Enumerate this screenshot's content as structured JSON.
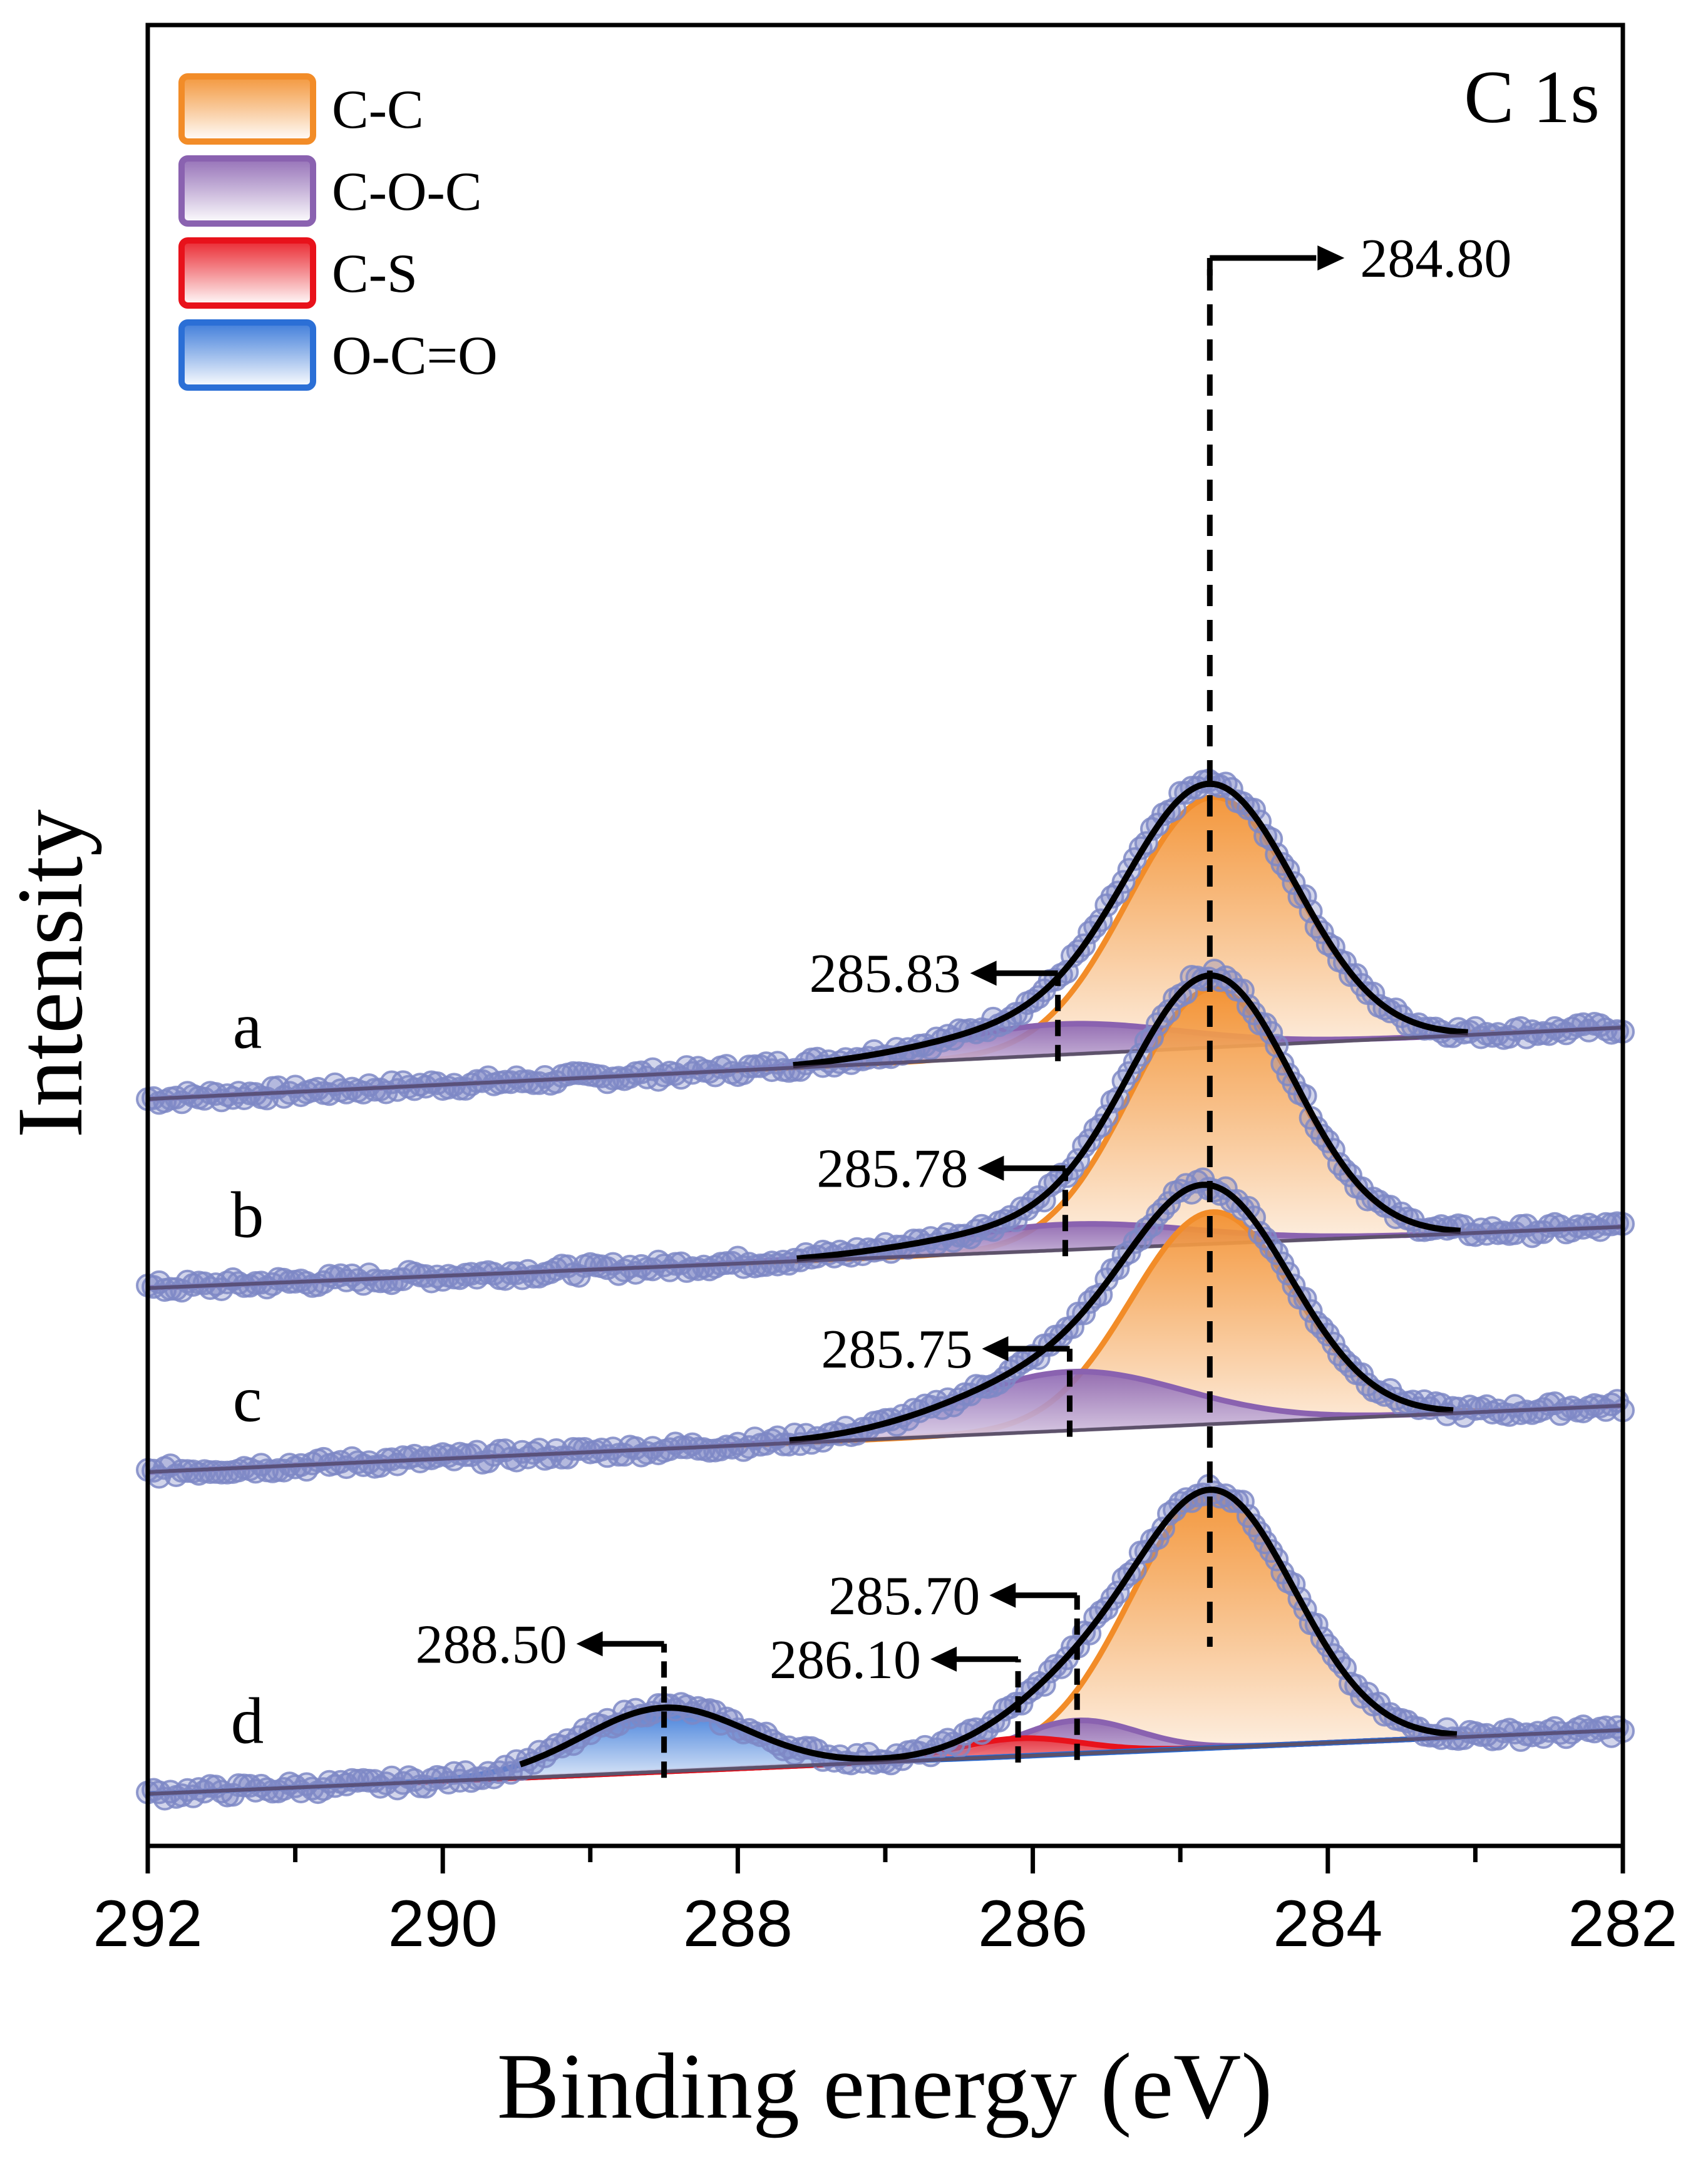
{
  "chart_data": {
    "type": "line",
    "title": "C 1s",
    "xlabel": "Binding energy (eV)",
    "ylabel": "Intensity",
    "xlim": [
      292,
      282
    ],
    "x_reversed": true,
    "x_ticks": [
      292,
      290,
      288,
      286,
      284,
      282
    ],
    "x_tick_labels": [
      "292",
      "290",
      "288",
      "286",
      "284",
      "282"
    ],
    "y_ticks_shown": false,
    "grid": false,
    "legend": {
      "placement": "top-left",
      "entries": [
        {
          "label": "C-C",
          "color": "#f28c28"
        },
        {
          "label": "C-O-C",
          "color": "#8a62b0"
        },
        {
          "label": "C-S",
          "color": "#e8121b"
        },
        {
          "label": "O-C=O",
          "color": "#2b6fd6"
        }
      ]
    },
    "colors": {
      "raw_points": "#7e88c6",
      "envelope": "#000000",
      "background": "#8a8a8a"
    },
    "reference_line": {
      "x": 284.8,
      "label": "284.80"
    },
    "spectra": [
      {
        "label": "a",
        "offset": 2.72,
        "background_slope": 0.028,
        "components": [
          {
            "name": "C-C",
            "center": 284.78,
            "height": 0.98,
            "fwhm": 1.35
          },
          {
            "name": "C-O-C",
            "center": 285.83,
            "height": 0.12,
            "fwhm": 1.9
          }
        ],
        "annotations": [
          {
            "x": 285.83,
            "label": "285.83"
          }
        ]
      },
      {
        "label": "b",
        "offset": 1.98,
        "background_slope": 0.024,
        "components": [
          {
            "name": "C-C",
            "center": 284.78,
            "height": 1.0,
            "fwhm": 1.3
          },
          {
            "name": "C-O-C",
            "center": 285.78,
            "height": 0.1,
            "fwhm": 2.0
          }
        ],
        "annotations": [
          {
            "x": 285.78,
            "label": "285.78"
          }
        ]
      },
      {
        "label": "c",
        "offset": 1.26,
        "background_slope": 0.026,
        "components": [
          {
            "name": "C-C",
            "center": 284.78,
            "height": 0.83,
            "fwhm": 1.3
          },
          {
            "name": "C-O-C",
            "center": 285.75,
            "height": 0.23,
            "fwhm": 1.8
          }
        ],
        "annotations": [
          {
            "x": 285.75,
            "label": "285.75"
          }
        ]
      },
      {
        "label": "d",
        "offset": 0.0,
        "background_slope": 0.025,
        "components": [
          {
            "name": "C-C",
            "center": 284.78,
            "height": 1.0,
            "fwhm": 1.3
          },
          {
            "name": "C-O-C",
            "center": 285.7,
            "height": 0.13,
            "fwhm": 0.95
          },
          {
            "name": "C-S",
            "center": 286.1,
            "height": 0.07,
            "fwhm": 1.0
          },
          {
            "name": "O-C=O",
            "center": 288.5,
            "height": 0.25,
            "fwhm": 1.3
          }
        ],
        "annotations": [
          {
            "x": 285.7,
            "label": "285.70"
          },
          {
            "x": 286.1,
            "label": "286.10"
          },
          {
            "x": 288.5,
            "label": "288.50"
          }
        ]
      }
    ]
  }
}
